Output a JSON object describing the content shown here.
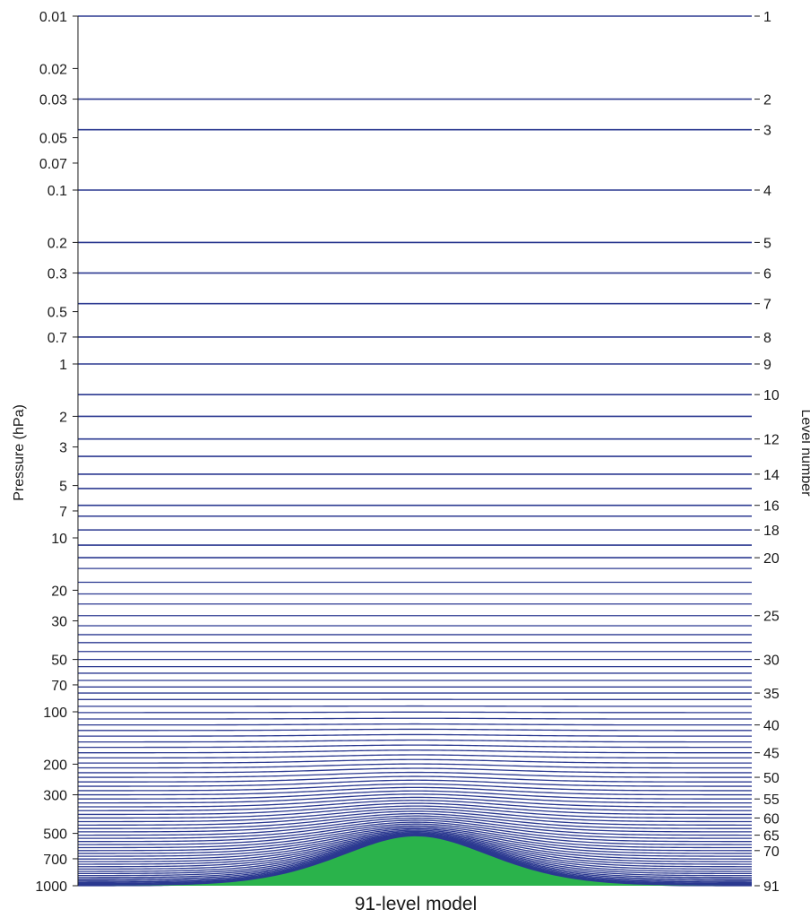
{
  "chart_data": {
    "type": "line",
    "title": "91-level model",
    "ylabel_left": "Pressure (hPa)",
    "ylabel_right": "Level number",
    "yscale": "log",
    "ylim": [
      0.01,
      1000
    ],
    "left_ticks": [
      {
        "value": 0.01,
        "label": "0.01"
      },
      {
        "value": 0.02,
        "label": "0.02"
      },
      {
        "value": 0.03,
        "label": "0.03"
      },
      {
        "value": 0.05,
        "label": "0.05"
      },
      {
        "value": 0.07,
        "label": "0.07"
      },
      {
        "value": 0.1,
        "label": "0.1"
      },
      {
        "value": 0.2,
        "label": "0.2"
      },
      {
        "value": 0.3,
        "label": "0.3"
      },
      {
        "value": 0.5,
        "label": "0.5"
      },
      {
        "value": 0.7,
        "label": "0.7"
      },
      {
        "value": 1,
        "label": "1"
      },
      {
        "value": 2,
        "label": "2"
      },
      {
        "value": 3,
        "label": "3"
      },
      {
        "value": 5,
        "label": "5"
      },
      {
        "value": 7,
        "label": "7"
      },
      {
        "value": 10,
        "label": "10"
      },
      {
        "value": 20,
        "label": "20"
      },
      {
        "value": 30,
        "label": "30"
      },
      {
        "value": 50,
        "label": "50"
      },
      {
        "value": 70,
        "label": "70"
      },
      {
        "value": 100,
        "label": "100"
      },
      {
        "value": 200,
        "label": "200"
      },
      {
        "value": 300,
        "label": "300"
      },
      {
        "value": 500,
        "label": "500"
      },
      {
        "value": 700,
        "label": "700"
      },
      {
        "value": 1000,
        "label": "1000"
      }
    ],
    "right_ticks": [
      {
        "level": 1,
        "label": "1"
      },
      {
        "level": 2,
        "label": "2"
      },
      {
        "level": 3,
        "label": "3"
      },
      {
        "level": 4,
        "label": "4"
      },
      {
        "level": 5,
        "label": "5"
      },
      {
        "level": 6,
        "label": "6"
      },
      {
        "level": 7,
        "label": "7"
      },
      {
        "level": 8,
        "label": "8"
      },
      {
        "level": 9,
        "label": "9"
      },
      {
        "level": 10,
        "label": "10"
      },
      {
        "level": 12,
        "label": "12"
      },
      {
        "level": 14,
        "label": "14"
      },
      {
        "level": 16,
        "label": "16"
      },
      {
        "level": 18,
        "label": "18"
      },
      {
        "level": 20,
        "label": "20"
      },
      {
        "level": 25,
        "label": "25"
      },
      {
        "level": 30,
        "label": "30"
      },
      {
        "level": 35,
        "label": "35"
      },
      {
        "level": 40,
        "label": "40"
      },
      {
        "level": 45,
        "label": "45"
      },
      {
        "level": 50,
        "label": "50"
      },
      {
        "level": 55,
        "label": "55"
      },
      {
        "level": 60,
        "label": "60"
      },
      {
        "level": 65,
        "label": "65"
      },
      {
        "level": 70,
        "label": "70"
      },
      {
        "level": 91,
        "label": "91"
      }
    ],
    "level_pressures_hPa": [
      0.01,
      0.03,
      0.045,
      0.1,
      0.2,
      0.3,
      0.45,
      0.7,
      1.0,
      1.5,
      2.0,
      2.7,
      3.4,
      4.3,
      5.2,
      6.5,
      7.5,
      9.0,
      11.0,
      13.0,
      15.0,
      18.0,
      21.0,
      24.0,
      28.0,
      32.0,
      36.0,
      40.0,
      45.0,
      50.0,
      55.0,
      60.0,
      66.0,
      72.0,
      78.0,
      85.0,
      93.0,
      101.0,
      110.0,
      119.0,
      128.0,
      138.0,
      149.0,
      160.0,
      172.0,
      184.0,
      197.0,
      210.0,
      224.0,
      238.0,
      253.0,
      268.0,
      284.0,
      300.0,
      317.0,
      334.0,
      352.0,
      370.0,
      389.0,
      408.0,
      428.0,
      448.0,
      469.0,
      490.0,
      512.0,
      534.0,
      557.0,
      580.0,
      604.0,
      628.0,
      652.0,
      677.0,
      702.0,
      727.0,
      752.0,
      777.0,
      802.0,
      827.0,
      851.0,
      874.0,
      896.0,
      916.0,
      935.0,
      952.0,
      966.0,
      978.0,
      987.0,
      993.0,
      997.0,
      999.0,
      1000.0
    ],
    "surface_pressure_hPa": {
      "flat": 1000,
      "mountain_top": 520
    },
    "colors": {
      "levels": "#2b3990",
      "terrain": "#2ab34b",
      "axis": "#1a1a1a"
    },
    "grid": false
  }
}
